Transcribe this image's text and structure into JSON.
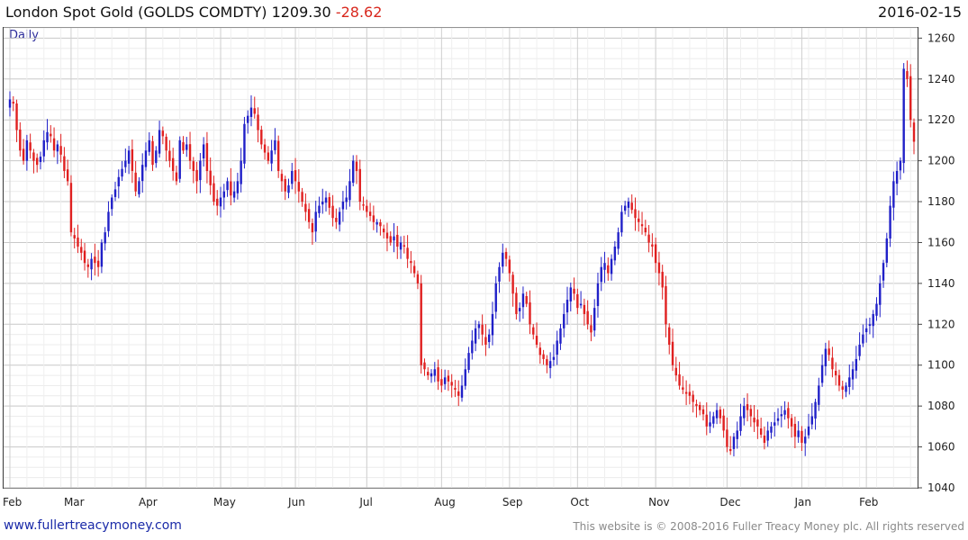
{
  "header": {
    "name": "London Spot Gold (GOLDS COMDTY)",
    "last": "1209.30",
    "change": "-28.62",
    "date": "2016-02-15"
  },
  "period_label": "Daily",
  "footer": {
    "left": "www.fullertreacymoney.com",
    "right": "This website is © 2008-2016 Fuller Treacy Money plc. All rights reserved"
  },
  "colors": {
    "up": "#2020c8",
    "down": "#e02020",
    "grid": "#d8d8d8"
  },
  "chart_data": {
    "type": "candlestick",
    "ylim": [
      1040,
      1265
    ],
    "yticks": [
      1040,
      1060,
      1080,
      1100,
      1120,
      1140,
      1160,
      1180,
      1200,
      1220,
      1240,
      1260
    ],
    "months": [
      "Feb",
      "Mar",
      "Apr",
      "May",
      "Jun",
      "Jul",
      "Aug",
      "Sep",
      "Oct",
      "Nov",
      "Dec",
      "Jan",
      "Feb"
    ],
    "month_start_index": [
      0,
      18,
      40,
      62,
      84,
      105,
      127,
      147,
      167,
      190,
      211,
      233,
      252
    ],
    "closes": [
      1230,
      1228,
      1215,
      1205,
      1200,
      1210,
      1205,
      1200,
      1198,
      1202,
      1210,
      1214,
      1212,
      1205,
      1208,
      1203,
      1195,
      1190,
      1165,
      1162,
      1158,
      1155,
      1150,
      1148,
      1152,
      1150,
      1148,
      1160,
      1165,
      1175,
      1182,
      1186,
      1192,
      1196,
      1200,
      1205,
      1195,
      1185,
      1190,
      1198,
      1205,
      1210,
      1198,
      1205,
      1215,
      1212,
      1205,
      1200,
      1195,
      1190,
      1210,
      1205,
      1208,
      1200,
      1195,
      1190,
      1200,
      1208,
      1195,
      1188,
      1180,
      1178,
      1182,
      1185,
      1190,
      1183,
      1185,
      1190,
      1200,
      1218,
      1222,
      1226,
      1223,
      1215,
      1208,
      1204,
      1200,
      1205,
      1210,
      1195,
      1190,
      1185,
      1188,
      1195,
      1190,
      1185,
      1180,
      1175,
      1170,
      1165,
      1175,
      1178,
      1180,
      1182,
      1177,
      1172,
      1170,
      1175,
      1180,
      1182,
      1190,
      1200,
      1195,
      1180,
      1178,
      1175,
      1173,
      1170,
      1170,
      1168,
      1165,
      1162,
      1160,
      1163,
      1158,
      1160,
      1158,
      1152,
      1150,
      1145,
      1140,
      1100,
      1098,
      1095,
      1096,
      1098,
      1092,
      1090,
      1094,
      1092,
      1090,
      1088,
      1085,
      1090,
      1098,
      1106,
      1112,
      1118,
      1120,
      1115,
      1110,
      1115,
      1125,
      1140,
      1148,
      1155,
      1152,
      1145,
      1135,
      1125,
      1128,
      1135,
      1130,
      1120,
      1115,
      1110,
      1105,
      1103,
      1100,
      1102,
      1104,
      1112,
      1118,
      1125,
      1132,
      1138,
      1135,
      1128,
      1130,
      1125,
      1120,
      1116,
      1128,
      1140,
      1148,
      1150,
      1145,
      1152,
      1158,
      1165,
      1175,
      1178,
      1180,
      1176,
      1172,
      1170,
      1168,
      1165,
      1160,
      1158,
      1150,
      1145,
      1138,
      1120,
      1110,
      1100,
      1095,
      1090,
      1088,
      1086,
      1085,
      1082,
      1080,
      1078,
      1076,
      1070,
      1072,
      1075,
      1078,
      1074,
      1068,
      1060,
      1058,
      1065,
      1068,
      1075,
      1080,
      1078,
      1075,
      1072,
      1070,
      1066,
      1062,
      1068,
      1070,
      1072,
      1074,
      1076,
      1078,
      1074,
      1070,
      1065,
      1068,
      1062,
      1065,
      1070,
      1075,
      1082,
      1090,
      1100,
      1108,
      1105,
      1098,
      1095,
      1090,
      1088,
      1090,
      1094,
      1098,
      1103,
      1110,
      1115,
      1118,
      1120,
      1125,
      1130,
      1140,
      1150,
      1162,
      1178,
      1190,
      1195,
      1200,
      1245,
      1240,
      1220,
      1209.3
    ]
  }
}
